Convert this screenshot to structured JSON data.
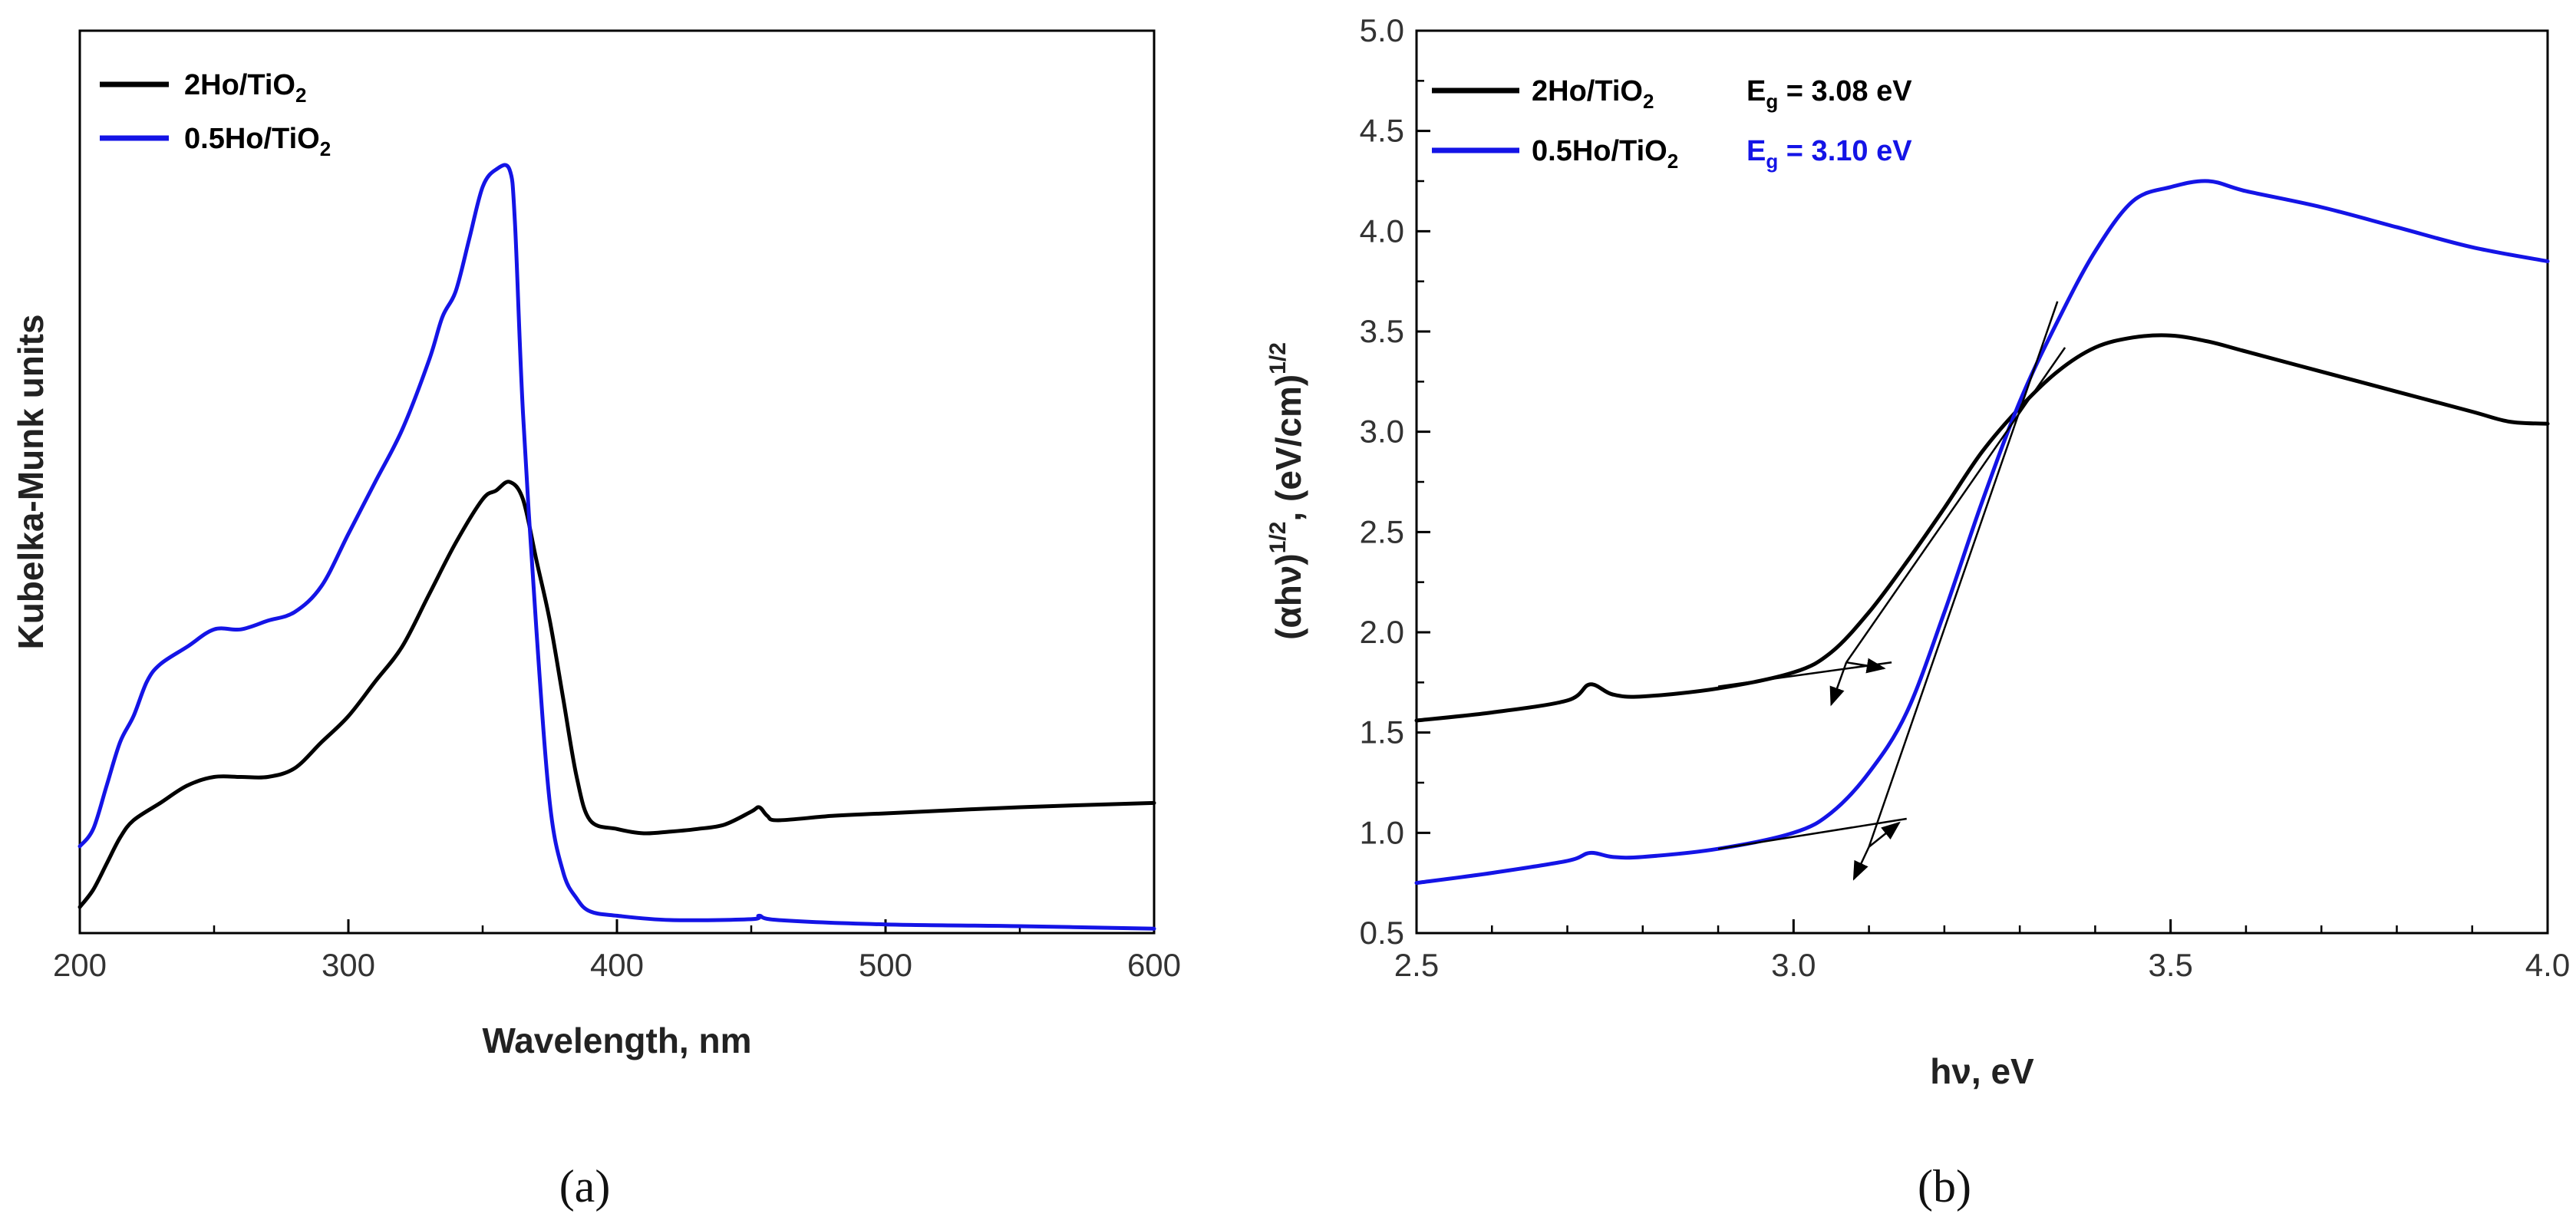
{
  "chart_data": [
    {
      "id": "a",
      "type": "line",
      "panel_label": "(a)",
      "xlabel": "Wavelength, nm",
      "ylabel": "Kubelka-Munk units",
      "xlim": [
        200,
        600
      ],
      "ylim": [
        0,
        1.04
      ],
      "xticks": [
        "200",
        "300",
        "400",
        "500",
        "600"
      ],
      "legend_position": "top-left",
      "series": [
        {
          "name": "2Ho/TiO",
          "sub": "2",
          "color": "#000000",
          "x": [
            200,
            205,
            210,
            215,
            220,
            230,
            240,
            250,
            260,
            270,
            280,
            290,
            300,
            310,
            320,
            330,
            340,
            350,
            355,
            360,
            365,
            370,
            375,
            380,
            385,
            390,
            400,
            410,
            420,
            430,
            440,
            450,
            453,
            456,
            460,
            480,
            500,
            550,
            600
          ],
          "y": [
            0.03,
            0.05,
            0.08,
            0.11,
            0.13,
            0.15,
            0.17,
            0.18,
            0.18,
            0.18,
            0.19,
            0.22,
            0.25,
            0.29,
            0.33,
            0.39,
            0.45,
            0.5,
            0.51,
            0.52,
            0.5,
            0.43,
            0.36,
            0.27,
            0.18,
            0.13,
            0.12,
            0.115,
            0.117,
            0.12,
            0.125,
            0.14,
            0.145,
            0.135,
            0.13,
            0.135,
            0.138,
            0.145,
            0.15
          ]
        },
        {
          "name": "0.5Ho/TiO",
          "sub": "2",
          "color": "#1414e6",
          "x": [
            200,
            205,
            210,
            215,
            220,
            225,
            230,
            240,
            250,
            260,
            270,
            280,
            290,
            300,
            310,
            320,
            330,
            335,
            340,
            345,
            350,
            355,
            360,
            362,
            365,
            370,
            375,
            380,
            385,
            390,
            400,
            420,
            450,
            453,
            460,
            500,
            550,
            600
          ],
          "y": [
            0.1,
            0.12,
            0.17,
            0.22,
            0.25,
            0.29,
            0.31,
            0.33,
            0.35,
            0.35,
            0.36,
            0.37,
            0.4,
            0.46,
            0.52,
            0.58,
            0.66,
            0.71,
            0.74,
            0.8,
            0.86,
            0.88,
            0.88,
            0.82,
            0.6,
            0.35,
            0.15,
            0.07,
            0.04,
            0.025,
            0.02,
            0.015,
            0.016,
            0.02,
            0.015,
            0.01,
            0.008,
            0.005
          ]
        }
      ]
    },
    {
      "id": "b",
      "type": "line",
      "panel_label": "(b)",
      "xlabel": "hν, eV",
      "ylabel": "(αhν)1/2, (eV/cm)1/2",
      "ylabel_parts": [
        "(αhν)",
        "1/2",
        ", (eV/cm)",
        "1/2"
      ],
      "xlim": [
        2.5,
        4.0
      ],
      "ylim": [
        0.5,
        5.0
      ],
      "xticks": [
        "2.5",
        "3.0",
        "3.5",
        "4.0"
      ],
      "yticks": [
        "0.5",
        "1.0",
        "1.5",
        "2.0",
        "2.5",
        "3.0",
        "3.5",
        "4.0",
        "4.5",
        "5.0"
      ],
      "legend_position": "top-left",
      "series": [
        {
          "name": "2Ho/TiO",
          "sub": "2",
          "color": "#000000",
          "eg_label": "E",
          "eg_sub": "g",
          "eg_value": " = 3.08 eV",
          "x": [
            2.5,
            2.6,
            2.7,
            2.73,
            2.76,
            2.8,
            2.9,
            3.0,
            3.05,
            3.1,
            3.15,
            3.2,
            3.25,
            3.3,
            3.35,
            3.4,
            3.45,
            3.5,
            3.55,
            3.6,
            3.7,
            3.8,
            3.9,
            3.95,
            4.0
          ],
          "y": [
            1.56,
            1.6,
            1.66,
            1.74,
            1.69,
            1.68,
            1.72,
            1.8,
            1.9,
            2.1,
            2.35,
            2.62,
            2.9,
            3.12,
            3.3,
            3.42,
            3.47,
            3.48,
            3.45,
            3.4,
            3.3,
            3.2,
            3.1,
            3.05,
            3.04
          ]
        },
        {
          "name": "0.5Ho/TiO",
          "sub": "2",
          "color": "#1414e6",
          "eg_label": "E",
          "eg_sub": "g",
          "eg_value": " = 3.10 eV",
          "x": [
            2.5,
            2.6,
            2.7,
            2.73,
            2.76,
            2.8,
            2.9,
            3.0,
            3.05,
            3.1,
            3.15,
            3.2,
            3.25,
            3.3,
            3.35,
            3.4,
            3.45,
            3.5,
            3.55,
            3.6,
            3.7,
            3.8,
            3.9,
            4.0
          ],
          "y": [
            0.75,
            0.8,
            0.86,
            0.9,
            0.88,
            0.88,
            0.92,
            1.0,
            1.1,
            1.3,
            1.6,
            2.1,
            2.65,
            3.15,
            3.55,
            3.9,
            4.15,
            4.22,
            4.25,
            4.2,
            4.12,
            4.02,
            3.92,
            3.85
          ]
        }
      ],
      "annotations": {
        "tangents": [
          {
            "color": "#000000",
            "from": [
              2.9,
              1.73
            ],
            "to": [
              3.13,
              1.85
            ]
          },
          {
            "color": "#000000",
            "from": [
              3.07,
              1.85
            ],
            "to": [
              3.36,
              3.42
            ]
          },
          {
            "color": "#000000",
            "from": [
              2.9,
              0.92
            ],
            "to": [
              3.15,
              1.07
            ]
          },
          {
            "color": "#000000",
            "from": [
              3.1,
              0.93
            ],
            "to": [
              3.35,
              3.65
            ]
          }
        ],
        "arrows": [
          {
            "from": [
              3.07,
              1.85
            ],
            "to": [
              3.12,
              1.82
            ]
          },
          {
            "from": [
              3.07,
              1.85
            ],
            "to": [
              3.05,
              1.64
            ]
          },
          {
            "from": [
              3.1,
              0.93
            ],
            "to": [
              3.14,
              1.05
            ]
          },
          {
            "from": [
              3.1,
              0.93
            ],
            "to": [
              3.08,
              0.77
            ]
          }
        ]
      }
    }
  ]
}
